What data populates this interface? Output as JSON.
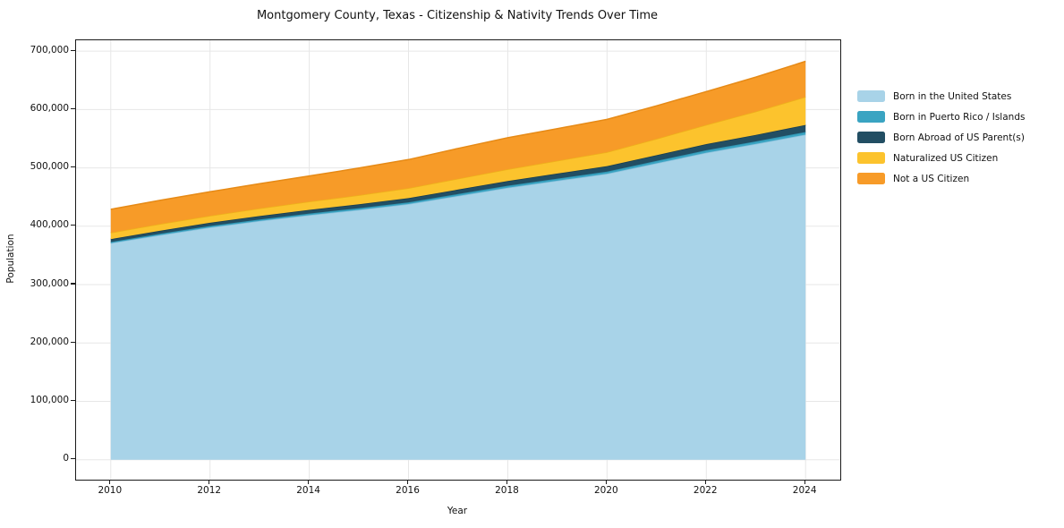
{
  "chart_data": {
    "type": "area",
    "stacked": true,
    "title": "Montgomery County, Texas - Citizenship & Nativity Trends Over Time",
    "xlabel": "Year",
    "ylabel": "Population",
    "grid": true,
    "legend_position": "right-outside",
    "x": [
      2010,
      2011,
      2012,
      2013,
      2014,
      2015,
      2016,
      2017,
      2018,
      2019,
      2020,
      2021,
      2022,
      2023,
      2024
    ],
    "series": [
      {
        "name": "Born in the United States",
        "color": "#a8d3e8",
        "edge": "#8cc2dd",
        "values": [
          371000,
          385000,
          398000,
          409000,
          419000,
          428000,
          438000,
          452000,
          466000,
          478000,
          490000,
          508000,
          526000,
          541000,
          557000
        ]
      },
      {
        "name": "Born in Puerto Rico / Islands",
        "color": "#3aa4c2",
        "edge": "#2f93b1",
        "values": [
          2000,
          2200,
          2400,
          2500,
          2700,
          2900,
          3000,
          3200,
          3400,
          3600,
          3700,
          3900,
          4100,
          4300,
          4500
        ]
      },
      {
        "name": "Born Abroad of US Parent(s)",
        "color": "#224e63",
        "edge": "#1a3d4e",
        "values": [
          5000,
          5300,
          5600,
          6000,
          6400,
          6800,
          7200,
          7700,
          8200,
          8700,
          9300,
          9900,
          10600,
          11300,
          12000
        ]
      },
      {
        "name": "Naturalized US Citizen",
        "color": "#fcc32d",
        "edge": "#eeb11a",
        "values": [
          11000,
          11500,
          12000,
          13000,
          14000,
          15500,
          17000,
          18500,
          20000,
          22000,
          24000,
          28000,
          33000,
          40000,
          48000
        ]
      },
      {
        "name": "Not a US Citizen",
        "color": "#f79b28",
        "edge": "#e68a16",
        "values": [
          40000,
          40500,
          41000,
          42500,
          44000,
          46500,
          49000,
          52000,
          54000,
          55000,
          56000,
          56500,
          57000,
          59000,
          61000
        ]
      }
    ],
    "xlim": [
      2009.3,
      2024.7
    ],
    "ylim": [
      -34200,
      718600
    ],
    "x_ticks": [
      {
        "value": 2010,
        "label": "2010"
      },
      {
        "value": 2012,
        "label": "2012"
      },
      {
        "value": 2014,
        "label": "2014"
      },
      {
        "value": 2016,
        "label": "2016"
      },
      {
        "value": 2018,
        "label": "2018"
      },
      {
        "value": 2020,
        "label": "2020"
      },
      {
        "value": 2022,
        "label": "2022"
      },
      {
        "value": 2024,
        "label": "2024"
      }
    ],
    "y_ticks": [
      {
        "value": 0,
        "label": "0"
      },
      {
        "value": 100000,
        "label": "100,000"
      },
      {
        "value": 200000,
        "label": "200,000"
      },
      {
        "value": 300000,
        "label": "300,000"
      },
      {
        "value": 400000,
        "label": "400,000"
      },
      {
        "value": 500000,
        "label": "500,000"
      },
      {
        "value": 600000,
        "label": "600,000"
      },
      {
        "value": 700000,
        "label": "700,000"
      }
    ],
    "grid_color": "#e7e7e7",
    "spine_color": "#1a1a1a"
  }
}
